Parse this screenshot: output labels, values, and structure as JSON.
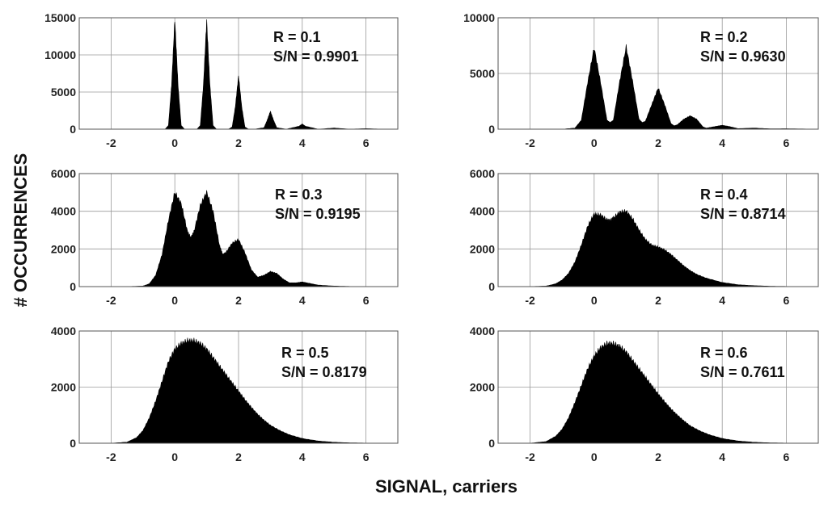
{
  "figure": {
    "xlabel": "SIGNAL, carriers",
    "ylabel": "# OCCURRENCES"
  },
  "chart_data": [
    {
      "type": "area",
      "xlim": [
        -3,
        7
      ],
      "ylim": [
        0,
        15000
      ],
      "xticks": [
        -2,
        0,
        2,
        4,
        6
      ],
      "yticks": [
        0,
        5000,
        10000,
        15000
      ],
      "grid": true,
      "annotation": [
        "R = 0.1",
        "S/N = 0.9901"
      ],
      "x": [
        -1.0,
        -0.5,
        -0.3,
        -0.2,
        -0.1,
        0,
        0.1,
        0.2,
        0.3,
        0.5,
        0.7,
        0.8,
        0.9,
        1.0,
        1.1,
        1.2,
        1.3,
        1.5,
        1.7,
        1.8,
        1.9,
        2.0,
        2.1,
        2.2,
        2.3,
        2.5,
        2.8,
        2.9,
        3.0,
        3.1,
        3.2,
        3.5,
        3.9,
        4.0,
        4.1,
        4.5,
        5.0,
        5.5,
        6.0,
        6.5,
        7.0
      ],
      "values": [
        0,
        0,
        30,
        500,
        6000,
        14800,
        6000,
        500,
        30,
        0,
        30,
        500,
        6000,
        14600,
        6000,
        500,
        30,
        0,
        30,
        300,
        3000,
        7200,
        3000,
        300,
        30,
        0,
        200,
        1200,
        2400,
        1200,
        200,
        0,
        400,
        700,
        400,
        0,
        150,
        0,
        80,
        0,
        0
      ]
    },
    {
      "type": "area",
      "xlim": [
        -3,
        7
      ],
      "ylim": [
        0,
        10000
      ],
      "xticks": [
        -2,
        0,
        2,
        4,
        6
      ],
      "yticks": [
        0,
        5000,
        10000
      ],
      "grid": true,
      "annotation": [
        "R = 0.2",
        "S/N = 0.9630"
      ],
      "x": [
        -1.0,
        -0.6,
        -0.4,
        -0.2,
        0,
        0.2,
        0.4,
        0.5,
        0.6,
        0.8,
        1.0,
        1.2,
        1.4,
        1.5,
        1.6,
        1.8,
        2.0,
        2.2,
        2.4,
        2.5,
        2.6,
        2.8,
        3.0,
        3.2,
        3.4,
        3.5,
        3.8,
        4.0,
        4.2,
        4.5,
        5.0,
        5.5,
        6.0,
        7.0
      ],
      "values": [
        0,
        100,
        800,
        4200,
        7300,
        4200,
        800,
        600,
        800,
        4300,
        7400,
        4300,
        900,
        600,
        700,
        2200,
        3700,
        2200,
        500,
        300,
        400,
        900,
        1200,
        900,
        200,
        100,
        250,
        350,
        250,
        50,
        100,
        30,
        40,
        0
      ]
    },
    {
      "type": "area",
      "xlim": [
        -3,
        7
      ],
      "ylim": [
        0,
        6000
      ],
      "xticks": [
        -2,
        0,
        2,
        4,
        6
      ],
      "yticks": [
        0,
        2000,
        4000,
        6000
      ],
      "grid": true,
      "annotation": [
        "R = 0.3",
        "S/N = 0.9195"
      ],
      "x": [
        -1.5,
        -1.0,
        -0.8,
        -0.6,
        -0.4,
        -0.2,
        0,
        0.2,
        0.4,
        0.5,
        0.6,
        0.8,
        1.0,
        1.2,
        1.4,
        1.5,
        1.6,
        1.8,
        2.0,
        2.2,
        2.4,
        2.6,
        2.8,
        3.0,
        3.2,
        3.4,
        3.6,
        3.8,
        4.0,
        4.2,
        4.5,
        5.0,
        5.5,
        6.0,
        7.0
      ],
      "values": [
        0,
        30,
        150,
        600,
        1700,
        3500,
        5000,
        4400,
        2900,
        2600,
        2900,
        4300,
        5000,
        4000,
        2200,
        1700,
        1800,
        2300,
        2500,
        1800,
        900,
        500,
        600,
        800,
        700,
        400,
        200,
        200,
        250,
        180,
        80,
        30,
        10,
        5,
        0
      ]
    },
    {
      "type": "area",
      "xlim": [
        -3,
        7
      ],
      "ylim": [
        0,
        6000
      ],
      "xticks": [
        -2,
        0,
        2,
        4,
        6
      ],
      "yticks": [
        0,
        2000,
        4000,
        6000
      ],
      "grid": true,
      "annotation": [
        "R = 0.4",
        "S/N = 0.8714"
      ],
      "x": [
        -2.0,
        -1.5,
        -1.2,
        -1.0,
        -0.8,
        -0.6,
        -0.4,
        -0.2,
        0,
        0.2,
        0.4,
        0.5,
        0.6,
        0.8,
        1.0,
        1.2,
        1.4,
        1.6,
        1.8,
        2.0,
        2.2,
        2.4,
        2.6,
        2.8,
        3.0,
        3.2,
        3.5,
        4.0,
        4.5,
        5.0,
        5.5,
        6.0,
        6.5,
        7.0
      ],
      "values": [
        0,
        30,
        150,
        350,
        700,
        1300,
        2200,
        3200,
        3850,
        3800,
        3550,
        3500,
        3650,
        3950,
        4000,
        3600,
        3000,
        2500,
        2200,
        2100,
        1950,
        1700,
        1400,
        1100,
        850,
        650,
        450,
        220,
        100,
        50,
        20,
        10,
        5,
        0
      ]
    },
    {
      "type": "area",
      "xlim": [
        -3,
        7
      ],
      "ylim": [
        0,
        4000
      ],
      "xticks": [
        -2,
        0,
        2,
        4,
        6
      ],
      "yticks": [
        0,
        2000,
        4000
      ],
      "grid": true,
      "annotation": [
        "R = 0.5",
        "S/N = 0.8179"
      ],
      "x": [
        -2.0,
        -1.5,
        -1.2,
        -1.0,
        -0.8,
        -0.6,
        -0.4,
        -0.2,
        0,
        0.2,
        0.4,
        0.6,
        0.8,
        1.0,
        1.2,
        1.4,
        1.6,
        1.8,
        2.0,
        2.2,
        2.4,
        2.6,
        2.8,
        3.0,
        3.3,
        3.6,
        4.0,
        4.5,
        5.0,
        5.5,
        6.0,
        7.0
      ],
      "values": [
        0,
        40,
        200,
        450,
        900,
        1500,
        2200,
        2900,
        3350,
        3550,
        3650,
        3650,
        3550,
        3350,
        3050,
        2750,
        2450,
        2150,
        1850,
        1550,
        1280,
        1030,
        820,
        640,
        450,
        300,
        170,
        80,
        35,
        15,
        5,
        0
      ]
    },
    {
      "type": "area",
      "xlim": [
        -3,
        7
      ],
      "ylim": [
        0,
        4000
      ],
      "xticks": [
        -2,
        0,
        2,
        4,
        6
      ],
      "yticks": [
        0,
        2000,
        4000
      ],
      "grid": true,
      "annotation": [
        "R = 0.6",
        "S/N = 0.7611"
      ],
      "x": [
        -2.0,
        -1.5,
        -1.2,
        -1.0,
        -0.8,
        -0.6,
        -0.4,
        -0.2,
        0,
        0.2,
        0.4,
        0.6,
        0.8,
        1.0,
        1.2,
        1.4,
        1.6,
        1.8,
        2.0,
        2.2,
        2.4,
        2.6,
        2.8,
        3.0,
        3.3,
        3.6,
        4.0,
        4.5,
        5.0,
        5.5,
        6.0,
        7.0
      ],
      "values": [
        0,
        60,
        250,
        500,
        900,
        1450,
        2050,
        2650,
        3100,
        3400,
        3550,
        3550,
        3450,
        3250,
        2950,
        2650,
        2350,
        2050,
        1750,
        1480,
        1220,
        1000,
        800,
        620,
        440,
        300,
        170,
        80,
        35,
        15,
        5,
        0
      ]
    }
  ]
}
